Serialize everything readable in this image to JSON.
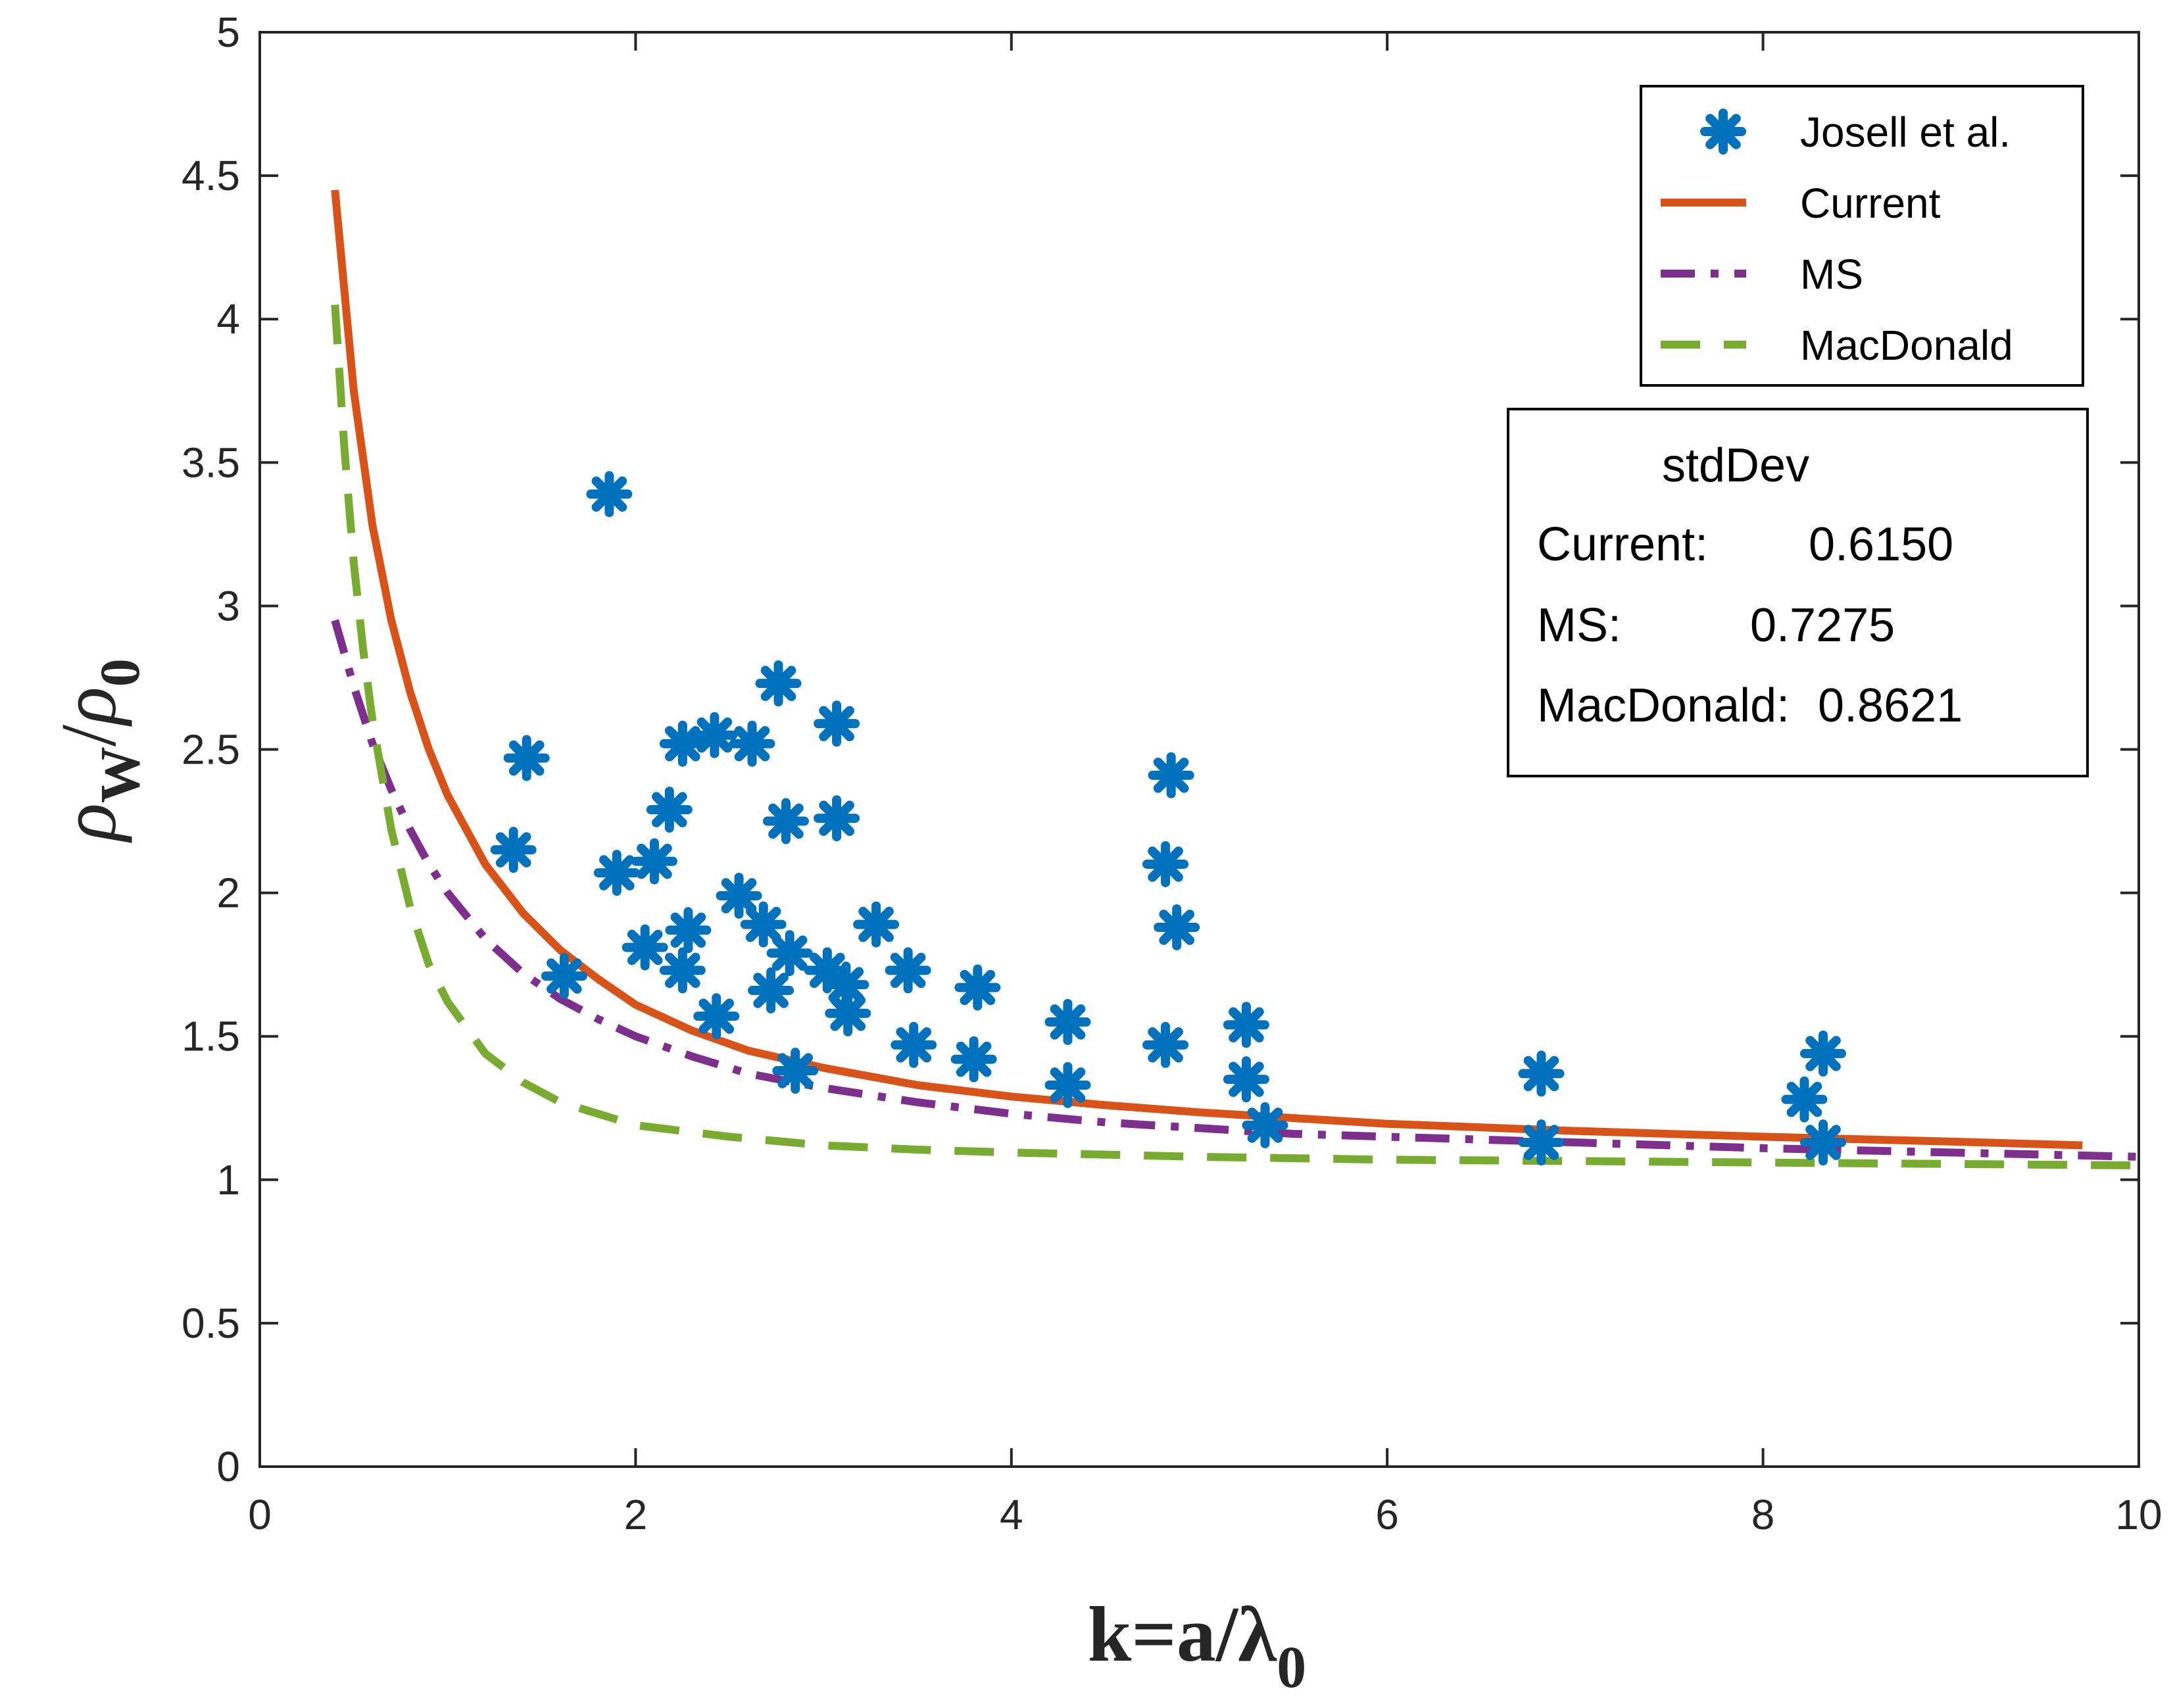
{
  "chart_data": {
    "type": "scatter",
    "title": "",
    "xlabel": "k=a/λ",
    "xlabel_sub": "0",
    "ylabel_rho": "ρ",
    "ylabel_sub_w": "W",
    "ylabel_slash": "/",
    "ylabel_sub_0": "0",
    "xlim": [
      0,
      10
    ],
    "ylim": [
      0,
      5
    ],
    "x_ticks": [
      0,
      2,
      4,
      6,
      8,
      10
    ],
    "x_tick_labels": [
      "0",
      "2",
      "4",
      "6",
      "8",
      "10"
    ],
    "y_ticks": [
      0,
      0.5,
      1,
      1.5,
      2,
      2.5,
      3,
      3.5,
      4,
      4.5,
      5
    ],
    "y_tick_labels": [
      "0",
      "0.5",
      "1",
      "1.5",
      "2",
      "2.5",
      "3",
      "3.5",
      "4",
      "4.5",
      "5"
    ],
    "grid": false,
    "legend_position": "top-right",
    "series": [
      {
        "name": "Josell et al.",
        "kind": "scatter",
        "marker": "asterisk",
        "color": "#0072BD",
        "points": [
          [
            1.35,
            2.15
          ],
          [
            1.42,
            2.47
          ],
          [
            1.62,
            1.71
          ],
          [
            1.86,
            3.39
          ],
          [
            1.9,
            2.07
          ],
          [
            2.05,
            1.81
          ],
          [
            2.1,
            2.11
          ],
          [
            2.18,
            2.29
          ],
          [
            2.25,
            2.52
          ],
          [
            2.25,
            1.73
          ],
          [
            2.28,
            1.87
          ],
          [
            2.42,
            2.55
          ],
          [
            2.43,
            1.57
          ],
          [
            2.55,
            1.99
          ],
          [
            2.62,
            2.52
          ],
          [
            2.68,
            1.89
          ],
          [
            2.72,
            1.66
          ],
          [
            2.76,
            2.73
          ],
          [
            2.8,
            2.25
          ],
          [
            2.82,
            1.79
          ],
          [
            2.85,
            1.38
          ],
          [
            3.02,
            1.73
          ],
          [
            3.07,
            2.59
          ],
          [
            3.07,
            2.26
          ],
          [
            3.12,
            1.68
          ],
          [
            3.13,
            1.58
          ],
          [
            3.28,
            1.89
          ],
          [
            3.45,
            1.73
          ],
          [
            3.48,
            1.47
          ],
          [
            3.8,
            1.42
          ],
          [
            3.82,
            1.67
          ],
          [
            4.3,
            1.55
          ],
          [
            4.3,
            1.33
          ],
          [
            4.82,
            2.1
          ],
          [
            4.85,
            2.41
          ],
          [
            4.82,
            1.47
          ],
          [
            4.88,
            1.88
          ],
          [
            5.25,
            1.54
          ],
          [
            5.25,
            1.35
          ],
          [
            5.35,
            1.19
          ],
          [
            6.82,
            1.37
          ],
          [
            6.82,
            1.13
          ],
          [
            8.22,
            1.28
          ],
          [
            8.32,
            1.44
          ],
          [
            8.32,
            1.13
          ]
        ]
      },
      {
        "name": "Current",
        "kind": "line",
        "color": "#D95319",
        "dash": "solid",
        "points": [
          [
            0.4,
            4.45
          ],
          [
            0.5,
            3.75
          ],
          [
            0.6,
            3.28
          ],
          [
            0.7,
            2.95
          ],
          [
            0.8,
            2.7
          ],
          [
            0.9,
            2.5
          ],
          [
            1.0,
            2.34
          ],
          [
            1.2,
            2.1
          ],
          [
            1.4,
            1.93
          ],
          [
            1.6,
            1.8
          ],
          [
            1.8,
            1.7
          ],
          [
            2.0,
            1.61
          ],
          [
            2.3,
            1.52
          ],
          [
            2.6,
            1.45
          ],
          [
            3.0,
            1.39
          ],
          [
            3.5,
            1.33
          ],
          [
            4.0,
            1.29
          ],
          [
            4.5,
            1.26
          ],
          [
            5.0,
            1.235
          ],
          [
            5.5,
            1.215
          ],
          [
            6.0,
            1.195
          ],
          [
            7.0,
            1.17
          ],
          [
            8.0,
            1.15
          ],
          [
            9.0,
            1.133
          ],
          [
            9.7,
            1.12
          ]
        ]
      },
      {
        "name": "MS",
        "kind": "line",
        "color": "#7E2F8E",
        "dash": "dashdot",
        "points": [
          [
            0.4,
            2.95
          ],
          [
            0.5,
            2.72
          ],
          [
            0.6,
            2.52
          ],
          [
            0.7,
            2.36
          ],
          [
            0.8,
            2.22
          ],
          [
            0.9,
            2.1
          ],
          [
            1.0,
            2.0
          ],
          [
            1.2,
            1.84
          ],
          [
            1.4,
            1.72
          ],
          [
            1.6,
            1.63
          ],
          [
            1.8,
            1.56
          ],
          [
            2.0,
            1.5
          ],
          [
            2.3,
            1.43
          ],
          [
            2.6,
            1.37
          ],
          [
            3.0,
            1.32
          ],
          [
            3.5,
            1.27
          ],
          [
            4.0,
            1.23
          ],
          [
            4.5,
            1.2
          ],
          [
            5.0,
            1.18
          ],
          [
            5.5,
            1.16
          ],
          [
            6.0,
            1.15
          ],
          [
            7.0,
            1.13
          ],
          [
            8.0,
            1.11
          ],
          [
            9.0,
            1.095
          ],
          [
            10.0,
            1.08
          ]
        ]
      },
      {
        "name": "MacDonald",
        "kind": "line",
        "color": "#77AC30",
        "dash": "dashed",
        "points": [
          [
            0.4,
            4.05
          ],
          [
            0.45,
            3.55
          ],
          [
            0.5,
            3.15
          ],
          [
            0.55,
            2.85
          ],
          [
            0.6,
            2.6
          ],
          [
            0.7,
            2.22
          ],
          [
            0.8,
            1.95
          ],
          [
            0.9,
            1.75
          ],
          [
            1.0,
            1.62
          ],
          [
            1.2,
            1.44
          ],
          [
            1.4,
            1.34
          ],
          [
            1.6,
            1.27
          ],
          [
            1.8,
            1.23
          ],
          [
            2.0,
            1.19
          ],
          [
            2.5,
            1.15
          ],
          [
            3.0,
            1.12
          ],
          [
            3.5,
            1.105
          ],
          [
            4.0,
            1.095
          ],
          [
            5.0,
            1.08
          ],
          [
            6.0,
            1.07
          ],
          [
            7.0,
            1.065
          ],
          [
            8.0,
            1.06
          ],
          [
            9.0,
            1.055
          ],
          [
            10.0,
            1.05
          ]
        ]
      }
    ],
    "annotation": {
      "title": "stdDev",
      "rows": [
        {
          "label": "Current:",
          "value": "0.6150"
        },
        {
          "label": "MS:",
          "value": "0.7275"
        },
        {
          "label": "MacDonald:",
          "value": "0.8621"
        }
      ]
    }
  }
}
